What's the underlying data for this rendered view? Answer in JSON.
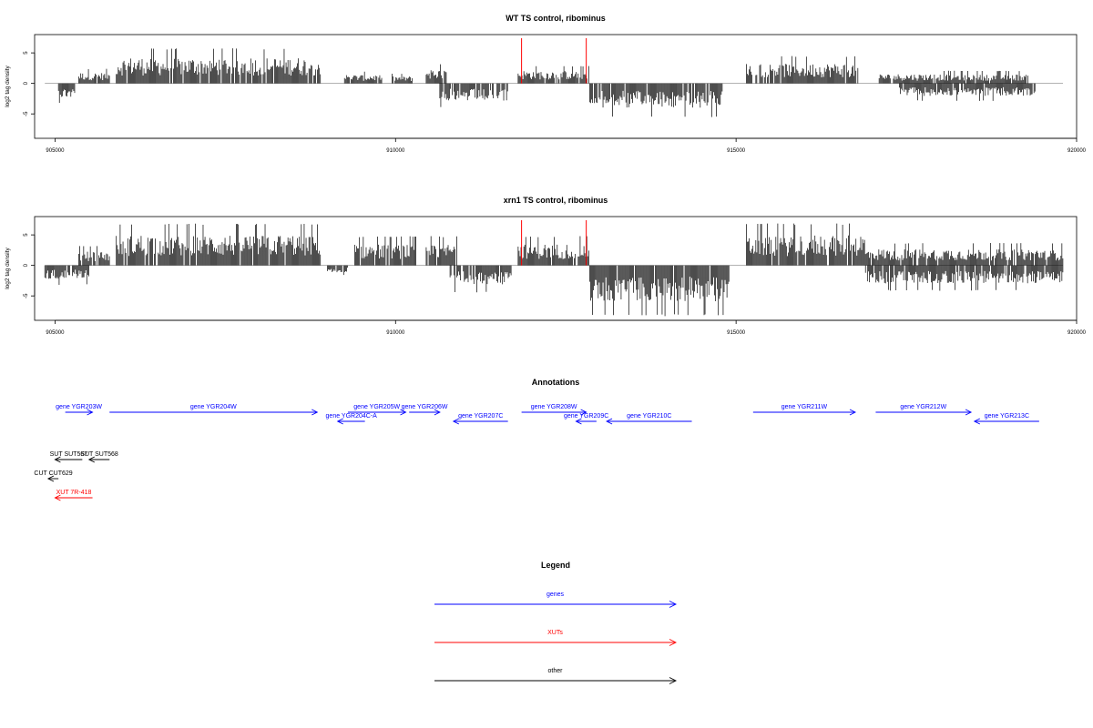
{
  "colors": {
    "gene": "#0000ff",
    "xut": "#ff0000",
    "other": "#000000",
    "bar": "#000000",
    "marker": "#ff0000",
    "axis": "#000000",
    "baseline": "#999999"
  },
  "chart_data": [
    {
      "type": "bar",
      "title": "WT TS control, ribominus",
      "ylabel": "log2 tag density",
      "xlim": [
        904700,
        920000
      ],
      "ylim": [
        -9,
        8
      ],
      "xticks": [
        905000,
        910000,
        915000,
        920000
      ],
      "xtick_labels": [
        "905000",
        "910000",
        "915000",
        "920000"
      ],
      "yticks": [
        5,
        0,
        -5
      ],
      "ytick_labels": [
        "5",
        "0",
        "-5"
      ],
      "markers": [
        911850,
        912800
      ],
      "segments": [
        {
          "start": 905050,
          "end": 905300,
          "strand": "minus",
          "level": 2.0
        },
        {
          "start": 905350,
          "end": 905800,
          "strand": "plus",
          "level": 1.5
        },
        {
          "start": 905900,
          "end": 908900,
          "strand": "plus",
          "level": 3.6
        },
        {
          "start": 909250,
          "end": 909800,
          "strand": "plus",
          "level": 1.2
        },
        {
          "start": 909950,
          "end": 910250,
          "strand": "plus",
          "level": 1.0
        },
        {
          "start": 910450,
          "end": 910750,
          "strand": "plus",
          "level": 2.0
        },
        {
          "start": 910650,
          "end": 911650,
          "strand": "minus",
          "level": 2.5
        },
        {
          "start": 911800,
          "end": 912850,
          "strand": "plus",
          "level": 1.8
        },
        {
          "start": 912850,
          "end": 914800,
          "strand": "minus",
          "level": 3.5
        },
        {
          "start": 915150,
          "end": 916800,
          "strand": "plus",
          "level": 2.8
        },
        {
          "start": 917100,
          "end": 919300,
          "strand": "plus",
          "level": 1.3
        },
        {
          "start": 917400,
          "end": 919400,
          "strand": "minus",
          "level": 1.8
        }
      ]
    },
    {
      "type": "bar",
      "title": "xrn1 TS control, ribominus",
      "ylabel": "log2 tag density",
      "xlim": [
        904700,
        920000
      ],
      "ylim": [
        -9,
        8
      ],
      "xticks": [
        905000,
        910000,
        915000,
        920000
      ],
      "xtick_labels": [
        "905000",
        "910000",
        "915000",
        "920000"
      ],
      "yticks": [
        5,
        0,
        -5
      ],
      "ytick_labels": [
        "5",
        "0",
        "-5"
      ],
      "markers": [
        911850,
        912800
      ],
      "segments": [
        {
          "start": 904850,
          "end": 905500,
          "strand": "minus",
          "level": 2.0
        },
        {
          "start": 905350,
          "end": 905800,
          "strand": "plus",
          "level": 2.0
        },
        {
          "start": 905900,
          "end": 908900,
          "strand": "plus",
          "level": 4.3
        },
        {
          "start": 909000,
          "end": 909300,
          "strand": "minus",
          "level": 1.0
        },
        {
          "start": 909400,
          "end": 910300,
          "strand": "plus",
          "level": 3.0
        },
        {
          "start": 910450,
          "end": 910900,
          "strand": "plus",
          "level": 3.0
        },
        {
          "start": 910800,
          "end": 911700,
          "strand": "minus",
          "level": 2.8
        },
        {
          "start": 911800,
          "end": 912850,
          "strand": "plus",
          "level": 3.0
        },
        {
          "start": 912850,
          "end": 914900,
          "strand": "minus",
          "level": 5.2
        },
        {
          "start": 915150,
          "end": 916900,
          "strand": "plus",
          "level": 4.3
        },
        {
          "start": 916900,
          "end": 919800,
          "strand": "plus",
          "level": 2.3
        },
        {
          "start": 916900,
          "end": 919800,
          "strand": "minus",
          "level": 2.6
        }
      ]
    }
  ],
  "annotations": {
    "title": "Annotations",
    "xlim": [
      904700,
      920000
    ],
    "features": [
      {
        "label": "gene YGR203W",
        "type": "gene",
        "start": 905150,
        "end": 905550,
        "strand": "+",
        "row": 0
      },
      {
        "label": "gene YGR204W",
        "type": "gene",
        "start": 905800,
        "end": 908850,
        "strand": "+",
        "row": 0
      },
      {
        "label": "gene YGR205W",
        "type": "gene",
        "start": 909300,
        "end": 910150,
        "strand": "+",
        "row": 0
      },
      {
        "label": "gene YGR204C-A",
        "type": "gene",
        "start": 909150,
        "end": 909550,
        "strand": "-",
        "row": 1
      },
      {
        "label": "gene YGR206W",
        "type": "gene",
        "start": 910200,
        "end": 910650,
        "strand": "+",
        "row": 0
      },
      {
        "label": "gene YGR207C",
        "type": "gene",
        "start": 910850,
        "end": 911650,
        "strand": "-",
        "row": 1
      },
      {
        "label": "gene YGR208W",
        "type": "gene",
        "start": 911850,
        "end": 912800,
        "strand": "+",
        "row": 0
      },
      {
        "label": "gene YGR209C",
        "type": "gene",
        "start": 912650,
        "end": 912950,
        "strand": "-",
        "row": 1
      },
      {
        "label": "gene YGR210C",
        "type": "gene",
        "start": 913100,
        "end": 914350,
        "strand": "-",
        "row": 1
      },
      {
        "label": "gene YGR211W",
        "type": "gene",
        "start": 915250,
        "end": 916750,
        "strand": "+",
        "row": 0
      },
      {
        "label": "gene YGR212W",
        "type": "gene",
        "start": 917050,
        "end": 918450,
        "strand": "+",
        "row": 0
      },
      {
        "label": "gene YGR213C",
        "type": "gene",
        "start": 918500,
        "end": 919450,
        "strand": "-",
        "row": 1
      },
      {
        "label": "SUT SUT567",
        "type": "other",
        "start": 905000,
        "end": 905400,
        "strand": "-",
        "row": 2
      },
      {
        "label": "SUT SUT568",
        "type": "other",
        "start": 905500,
        "end": 905800,
        "strand": "-",
        "row": 2
      },
      {
        "label": "CUT CUT629",
        "type": "other",
        "start": 904900,
        "end": 905050,
        "strand": "-",
        "row": 3
      },
      {
        "label": "XUT 7R-418",
        "type": "xut",
        "start": 905000,
        "end": 905550,
        "strand": "-",
        "row": 4
      }
    ]
  },
  "legend": {
    "title": "Legend",
    "entries": [
      {
        "label": "genes",
        "type": "gene"
      },
      {
        "label": "XUTs",
        "type": "xut"
      },
      {
        "label": "other",
        "type": "other"
      }
    ]
  }
}
